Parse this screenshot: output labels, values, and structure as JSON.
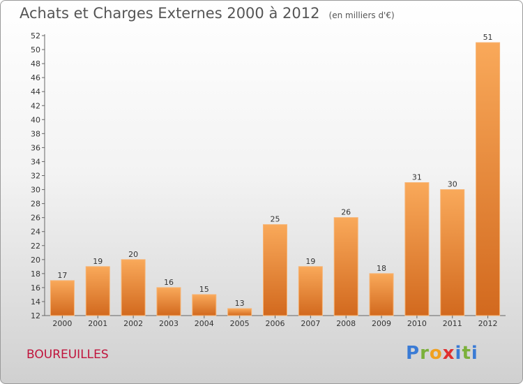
{
  "header": {
    "title": "Achats et Charges Externes 2000 à 2012",
    "subtitle": "(en milliers d'€)"
  },
  "location": "BOUREUILLES",
  "logo": {
    "letters": [
      "P",
      "r",
      "o",
      "x",
      "i",
      "t",
      "i"
    ]
  },
  "colors": {
    "bar_light": "#f9a95a",
    "bar_dark": "#d2691e",
    "title_text": "#555555",
    "location_text": "#c0143c"
  },
  "chart_data": {
    "type": "bar",
    "title": "Achats et Charges Externes 2000 à 2012",
    "subtitle": "(en milliers d'€)",
    "xlabel": "",
    "ylabel": "",
    "categories": [
      "2000",
      "2001",
      "2002",
      "2003",
      "2004",
      "2005",
      "2006",
      "2007",
      "2008",
      "2009",
      "2010",
      "2011",
      "2012"
    ],
    "values": [
      17,
      19,
      20,
      16,
      15,
      13,
      25,
      19,
      26,
      18,
      31,
      30,
      51
    ],
    "ylim": [
      12,
      52
    ],
    "yticks": [
      12,
      14,
      16,
      18,
      20,
      22,
      24,
      26,
      28,
      30,
      32,
      34,
      36,
      38,
      40,
      42,
      44,
      46,
      48,
      50,
      52
    ],
    "grid": false,
    "legend": "none"
  }
}
